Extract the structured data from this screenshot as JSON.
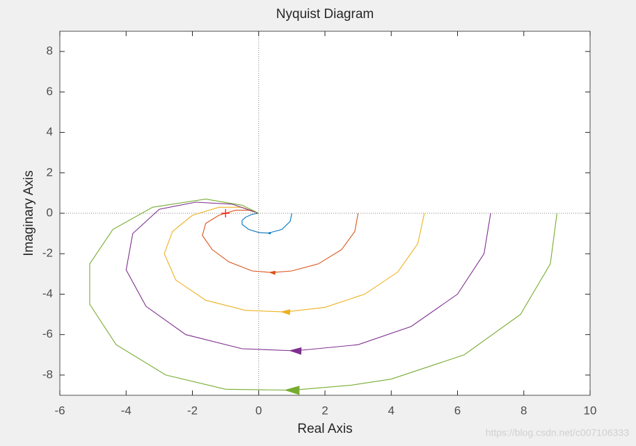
{
  "chart_data": {
    "type": "line",
    "title": "Nyquist Diagram",
    "x_label": "Real Axis",
    "y_label": "Imaginary Axis",
    "xlim": [
      -6,
      10
    ],
    "ylim": [
      -9,
      9
    ],
    "xticks": [
      -6,
      -4,
      -2,
      0,
      2,
      4,
      6,
      8,
      10
    ],
    "yticks": [
      -8,
      -6,
      -4,
      -2,
      0,
      2,
      4,
      6,
      8
    ],
    "grid": false,
    "critical_point": {
      "x": -1,
      "y": 0,
      "color": "#ff0000"
    },
    "series": [
      {
        "color": "#0072bd",
        "x": [
          1,
          0.95,
          0.7,
          0.3,
          0.0,
          -0.3,
          -0.5,
          -0.5,
          -0.4,
          -0.2,
          0
        ],
        "values": [
          0,
          -0.4,
          -0.8,
          -0.98,
          -0.95,
          -0.8,
          -0.55,
          -0.35,
          -0.2,
          -0.05,
          0
        ]
      },
      {
        "color": "#d95319",
        "x": [
          3,
          2.9,
          2.5,
          1.8,
          1,
          0.4,
          -0.2,
          -0.9,
          -1.4,
          -1.7,
          -1.6,
          -1.2,
          -0.7,
          -0.3,
          0
        ],
        "values": [
          0,
          -0.9,
          -1.8,
          -2.5,
          -2.85,
          -2.93,
          -2.85,
          -2.4,
          -1.8,
          -1.1,
          -0.5,
          -0.1,
          0.15,
          0.15,
          0
        ]
      },
      {
        "color": "#edb120",
        "x": [
          5,
          4.8,
          4.2,
          3.2,
          2,
          0.8,
          -0.4,
          -1.6,
          -2.5,
          -2.85,
          -2.6,
          -2,
          -1.2,
          -0.5,
          0
        ],
        "values": [
          0,
          -1.5,
          -2.9,
          -4,
          -4.65,
          -4.88,
          -4.8,
          -4.3,
          -3.3,
          -2,
          -0.9,
          -0.1,
          0.3,
          0.3,
          0
        ]
      },
      {
        "color": "#7e2f8e",
        "x": [
          7,
          6.8,
          6,
          4.6,
          3,
          1.1,
          -0.5,
          -2.2,
          -3.4,
          -4,
          -3.8,
          -3,
          -1.9,
          -0.8,
          0
        ],
        "values": [
          0,
          -2,
          -4,
          -5.6,
          -6.5,
          -6.8,
          -6.7,
          -6,
          -4.6,
          -2.8,
          -1,
          0.2,
          0.55,
          0.45,
          0
        ]
      },
      {
        "color": "#77ac30",
        "x": [
          9,
          8.8,
          7.9,
          6.2,
          4,
          2.8,
          1,
          -1,
          -2.8,
          -4.3,
          -5.1,
          -5.1,
          -4.4,
          -3.2,
          -1.6,
          -0.5,
          0
        ],
        "values": [
          0,
          -2.5,
          -5,
          -7,
          -8.2,
          -8.5,
          -8.75,
          -8.7,
          -8,
          -6.5,
          -4.5,
          -2.5,
          -0.8,
          0.3,
          0.7,
          0.4,
          0
        ]
      }
    ]
  },
  "watermark": "https://blog.csdn.net/c007106333"
}
